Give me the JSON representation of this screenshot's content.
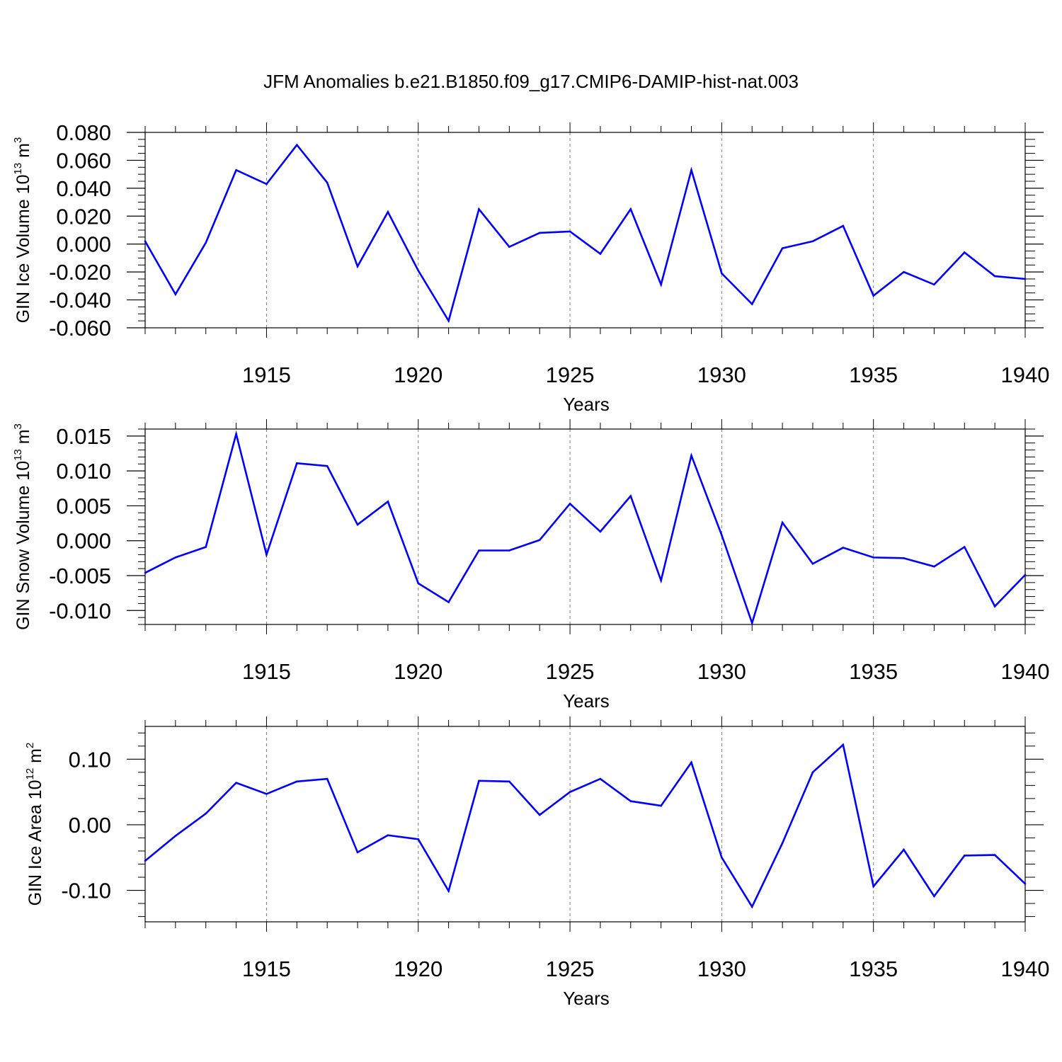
{
  "figure_title": "JFM Anomalies b.e21.B1850.f09_g17.CMIP6-DAMIP-hist-nat.003",
  "colors": {
    "line": "#0000ff",
    "axis": "#000000",
    "grid": "#808080",
    "background": "#ffffff"
  },
  "chart_data": [
    {
      "type": "line",
      "title": "",
      "xlabel": "Years",
      "ylabel": "GIN Ice Volume 10",
      "ylabel_exp": "13",
      "ylabel_unit": " m",
      "ylabel_unit_exp": "3",
      "xlim": [
        1911,
        1940
      ],
      "ylim": [
        -0.06,
        0.08
      ],
      "x_ticks": [
        1915,
        1920,
        1925,
        1930,
        1935,
        1940
      ],
      "x_tick_labels": [
        "1915",
        "1920",
        "1925",
        "1930",
        "1935",
        "1940"
      ],
      "y_ticks": [
        0.08,
        0.06,
        0.04,
        0.02,
        0.0,
        -0.02,
        -0.04,
        -0.06
      ],
      "y_tick_labels": [
        "0.080",
        "0.060",
        "0.040",
        "0.020",
        "0.000",
        "-0.020",
        "-0.040",
        "-0.060"
      ],
      "y_minor_step": 0.005,
      "grid": "vertical dashed at major x ticks",
      "series": [
        {
          "name": "GIN Ice Volume",
          "x": [
            1911,
            1912,
            1913,
            1914,
            1915,
            1916,
            1917,
            1918,
            1919,
            1920,
            1921,
            1922,
            1923,
            1924,
            1925,
            1926,
            1927,
            1928,
            1929,
            1930,
            1931,
            1932,
            1933,
            1934,
            1935,
            1936,
            1937,
            1938,
            1939,
            1940
          ],
          "values": [
            0.002,
            -0.036,
            0.001,
            0.053,
            0.043,
            0.071,
            0.044,
            -0.016,
            0.023,
            -0.019,
            -0.055,
            0.025,
            -0.002,
            0.008,
            0.009,
            -0.007,
            0.025,
            -0.029,
            0.053,
            -0.021,
            -0.043,
            -0.003,
            0.002,
            0.013,
            -0.037,
            -0.02,
            -0.029,
            -0.006,
            -0.023,
            -0.025
          ]
        }
      ]
    },
    {
      "type": "line",
      "title": "",
      "xlabel": "Years",
      "ylabel": "GIN Snow Volume 10",
      "ylabel_exp": "13",
      "ylabel_unit": " m",
      "ylabel_unit_exp": "3",
      "xlim": [
        1911,
        1940
      ],
      "ylim": [
        -0.012,
        0.016
      ],
      "x_ticks": [
        1915,
        1920,
        1925,
        1930,
        1935,
        1940
      ],
      "x_tick_labels": [
        "1915",
        "1920",
        "1925",
        "1930",
        "1935",
        "1940"
      ],
      "y_ticks": [
        0.015,
        0.01,
        0.005,
        0.0,
        -0.005,
        -0.01
      ],
      "y_tick_labels": [
        "0.015",
        "0.010",
        "0.005",
        "0.000",
        "-0.005",
        "-0.010"
      ],
      "y_minor_step": 0.001,
      "grid": "vertical dashed at major x ticks",
      "series": [
        {
          "name": "GIN Snow Volume",
          "x": [
            1911,
            1912,
            1913,
            1914,
            1915,
            1916,
            1917,
            1918,
            1919,
            1920,
            1921,
            1922,
            1923,
            1924,
            1925,
            1926,
            1927,
            1928,
            1929,
            1930,
            1931,
            1932,
            1933,
            1934,
            1935,
            1936,
            1937,
            1938,
            1939,
            1940
          ],
          "values": [
            -0.0046,
            -0.0024,
            -0.0009,
            0.0153,
            -0.002,
            0.0111,
            0.0107,
            0.0023,
            0.0056,
            -0.0061,
            -0.0088,
            -0.0014,
            -0.0014,
            0.0001,
            0.0053,
            0.0013,
            0.0064,
            -0.0057,
            0.0122,
            0.0008,
            -0.0118,
            0.0026,
            -0.0033,
            -0.001,
            -0.0024,
            -0.0025,
            -0.0037,
            -0.0009,
            -0.0094,
            -0.0049
          ]
        }
      ]
    },
    {
      "type": "line",
      "title": "",
      "xlabel": "Years",
      "ylabel": "GIN Ice Area 10",
      "ylabel_exp": "12",
      "ylabel_unit": " m",
      "ylabel_unit_exp": "2",
      "xlim": [
        1911,
        1940
      ],
      "ylim": [
        -0.148,
        0.15
      ],
      "x_ticks": [
        1915,
        1920,
        1925,
        1930,
        1935,
        1940
      ],
      "x_tick_labels": [
        "1915",
        "1920",
        "1925",
        "1930",
        "1935",
        "1940"
      ],
      "y_ticks": [
        0.1,
        0.0,
        -0.1
      ],
      "y_tick_labels": [
        "0.10",
        "0.00",
        "-0.10"
      ],
      "y_minor_step": 0.02,
      "grid": "vertical dashed at major x ticks",
      "series": [
        {
          "name": "GIN Ice Area",
          "x": [
            1911,
            1912,
            1913,
            1914,
            1915,
            1916,
            1917,
            1918,
            1919,
            1920,
            1921,
            1922,
            1923,
            1924,
            1925,
            1926,
            1927,
            1928,
            1929,
            1930,
            1931,
            1932,
            1933,
            1934,
            1935,
            1936,
            1937,
            1938,
            1939,
            1940
          ],
          "values": [
            -0.055,
            -0.017,
            0.017,
            0.064,
            0.047,
            0.066,
            0.07,
            -0.042,
            -0.016,
            -0.022,
            -0.101,
            0.067,
            0.066,
            0.015,
            0.05,
            0.07,
            0.036,
            0.029,
            0.095,
            -0.05,
            -0.125,
            -0.028,
            0.08,
            0.122,
            -0.094,
            -0.038,
            -0.109,
            -0.047,
            -0.046,
            -0.09
          ]
        }
      ]
    }
  ]
}
